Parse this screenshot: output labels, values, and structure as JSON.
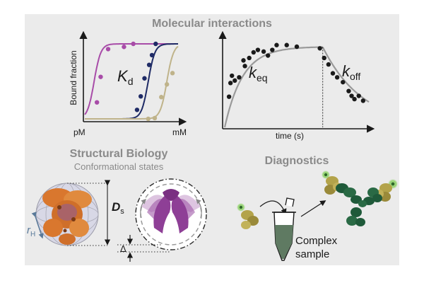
{
  "colors": {
    "panel_bg": "#ebebeb",
    "title_gray": "#8a8a8a",
    "purple": "#a84ca8",
    "navy": "#1f2b66",
    "tan": "#bfb38a",
    "kinetic_fit": "#9a9a9a",
    "dots": "#1a1a1a",
    "orange_protein": "#d9772e",
    "violet_protein": "#a05aa8",
    "olive_protein": "#b3a34a",
    "green_antibody": "#1f5a3a",
    "tube_fill": "#5f7a62",
    "glow": "#8fd16a"
  },
  "header": {
    "title": "Molecular interactions"
  },
  "binding_plot": {
    "ylabel": "Bound fraction",
    "x_start": "pM",
    "x_end": "mM",
    "symbol_main": "K",
    "symbol_sub": "d"
  },
  "kinetics_plot": {
    "xlabel": "time (s)",
    "keq_main": "k",
    "keq_sub": "eq",
    "koff_main": "k",
    "koff_sub": "off"
  },
  "structural": {
    "title": "Structural Biology",
    "subtitle": "Conformational states",
    "ds_main": "D",
    "ds_sub": "s",
    "rh_main": "r",
    "rh_sub": "H",
    "delta": "Δ"
  },
  "diagnostics": {
    "title": "Diagnostics",
    "sample_line1": "Complex",
    "sample_line2": "sample"
  },
  "chart_data": [
    {
      "type": "scatter",
      "x_scale": "log",
      "ylabel": "Bound fraction",
      "xlim": [
        "pM",
        "mM"
      ],
      "ylim": [
        0,
        1
      ],
      "series": [
        {
          "color": "purple",
          "midpoint": 0.1,
          "x": [
            0.13,
            0.17,
            0.25,
            0.42,
            0.52
          ],
          "y": [
            0.22,
            0.56,
            0.93,
            0.96,
            1.0
          ]
        },
        {
          "color": "navy",
          "midpoint": 0.68,
          "x": [
            0.56,
            0.6,
            0.64,
            0.69,
            0.72,
            0.76
          ],
          "y": [
            0.12,
            0.3,
            0.54,
            0.72,
            0.85,
            1.0
          ]
        },
        {
          "color": "tan",
          "midpoint": 0.88,
          "x": [
            0.68,
            0.75,
            0.82,
            0.88,
            0.94
          ],
          "y": [
            0.0,
            0.01,
            0.29,
            0.46,
            0.61
          ]
        }
      ]
    },
    {
      "type": "scatter",
      "xlabel": "time (s)",
      "fit": "association then dissociation",
      "switch_t": 0.68,
      "series": [
        {
          "name": "data",
          "x": [
            0.03,
            0.04,
            0.05,
            0.07,
            0.1,
            0.13,
            0.14,
            0.17,
            0.2,
            0.23,
            0.27,
            0.3,
            0.33,
            0.36,
            0.43,
            0.5,
            0.66,
            0.69,
            0.72,
            0.75,
            0.78,
            0.82,
            0.86,
            0.88,
            0.9,
            0.93,
            0.96
          ],
          "y": [
            0.38,
            0.55,
            0.64,
            0.58,
            0.62,
            0.83,
            0.76,
            0.86,
            0.93,
            0.96,
            0.94,
            0.89,
            0.96,
            1.02,
            1.02,
            1.0,
            0.98,
            0.86,
            0.78,
            0.67,
            0.62,
            0.56,
            0.45,
            0.39,
            0.35,
            0.39,
            0.33
          ]
        }
      ]
    }
  ]
}
